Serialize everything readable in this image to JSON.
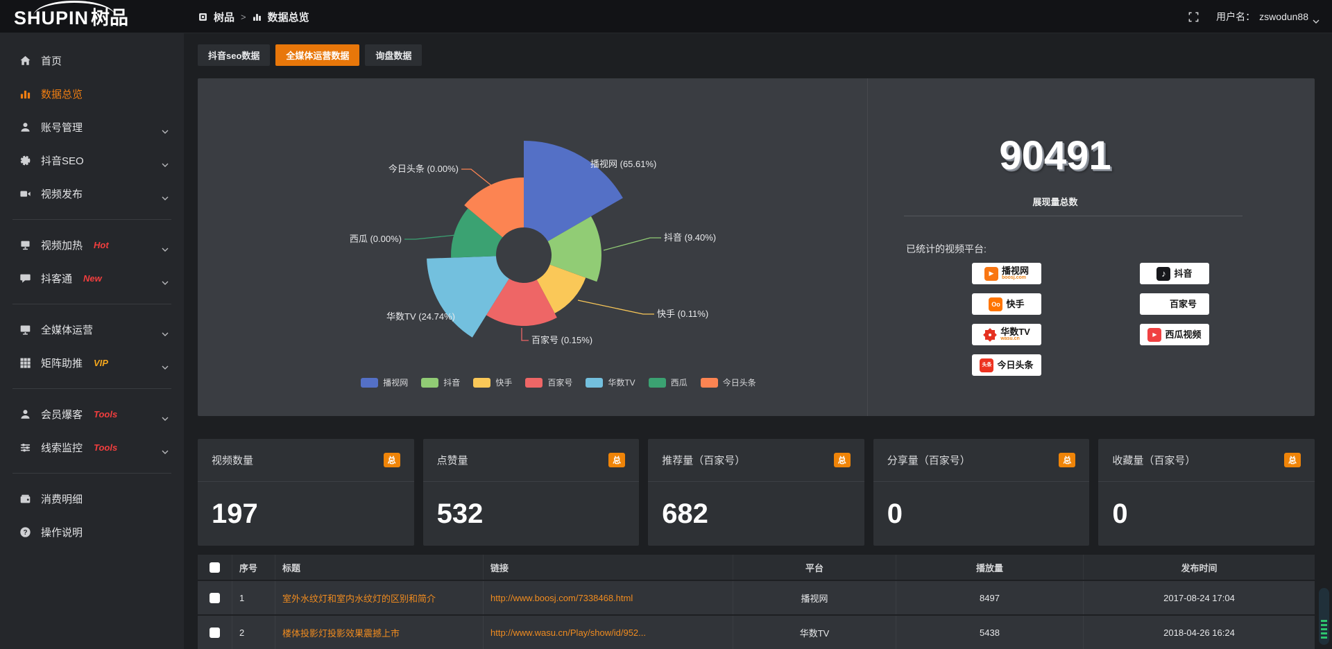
{
  "header": {
    "logo_en": "SHUPIN",
    "logo_cn": "树品",
    "breadcrumb": [
      {
        "label": "树品"
      },
      {
        "label": "数据总览"
      }
    ],
    "breadcrumb_separator": ">",
    "username_label": "用户名：",
    "username": "zswodun88"
  },
  "sidebar": {
    "items": [
      {
        "label": "首页",
        "icon": "home-icon"
      },
      {
        "label": "数据总览",
        "icon": "bar-chart-icon",
        "active": true
      },
      {
        "label": "账号管理",
        "icon": "user-icon",
        "chevron": true
      },
      {
        "label": "抖音SEO",
        "icon": "gear-icon",
        "chevron": true
      },
      {
        "label": "视频发布",
        "icon": "video-icon",
        "chevron": true,
        "divider_after": true
      },
      {
        "label": "视频加热",
        "icon": "screen-icon",
        "tag": "Hot",
        "tag_color": "#f23e3e",
        "chevron": true
      },
      {
        "label": "抖客通",
        "icon": "chat-icon",
        "tag": "New",
        "tag_color": "#f23e3e",
        "chevron": true,
        "divider_after": true
      },
      {
        "label": "全媒体运营",
        "icon": "monitor-icon",
        "chevron": true
      },
      {
        "label": "矩阵助推",
        "icon": "grid-icon",
        "tag": "VIP",
        "tag_color": "#f5a71d",
        "chevron": true,
        "divider_after": true
      },
      {
        "label": "会员爆客",
        "icon": "person-icon",
        "tag": "Tools",
        "tag_color": "#f23e3e",
        "chevron": true
      },
      {
        "label": "线索监控",
        "icon": "sliders-icon",
        "tag": "Tools",
        "tag_color": "#f23e3e",
        "chevron": true,
        "divider_after": true
      },
      {
        "label": "消费明细",
        "icon": "wallet-icon"
      },
      {
        "label": "操作说明",
        "icon": "question-icon"
      }
    ]
  },
  "tabs": [
    {
      "label": "抖音seo数据",
      "active": false
    },
    {
      "label": "全媒体运营数据",
      "active": true
    },
    {
      "label": "询盘数据",
      "active": false
    }
  ],
  "chart_data": {
    "type": "pie",
    "style": "nightingale-rose",
    "legend_position": "bottom",
    "series": [
      {
        "name": "播视网",
        "percent": 65.61,
        "color": "#5470c6"
      },
      {
        "name": "抖音",
        "percent": 9.4,
        "color": "#91cc75"
      },
      {
        "name": "快手",
        "percent": 0.11,
        "color": "#fac858"
      },
      {
        "name": "百家号",
        "percent": 0.15,
        "color": "#ee6666"
      },
      {
        "name": "华数TV",
        "percent": 24.74,
        "color": "#73c0de"
      },
      {
        "name": "西瓜",
        "percent": 0.0,
        "color": "#3ba272"
      },
      {
        "name": "今日头条",
        "percent": 0.0,
        "color": "#fc8452"
      }
    ]
  },
  "summary": {
    "total": "90491",
    "total_label": "展现量总数",
    "platforms_label": "已统计的视频平台:",
    "platforms_left": [
      {
        "name": "播视网",
        "sub": "boosj.com",
        "logo": "boosj"
      },
      {
        "name": "快手",
        "sub": "",
        "logo": "kuaishou"
      },
      {
        "name": "华数TV",
        "sub": "wasu.cn",
        "logo": "wasu"
      },
      {
        "name": "今日头条",
        "sub": "",
        "logo": "toutiao"
      }
    ],
    "platforms_right": [
      {
        "name": "抖音",
        "sub": "",
        "logo": "douyin"
      },
      {
        "name": "百家号",
        "sub": "",
        "logo": "baijiahao"
      },
      {
        "name": "西瓜视频",
        "sub": "",
        "logo": "xigua"
      }
    ]
  },
  "stat_cards": [
    {
      "label": "视频数量",
      "badge": "总",
      "value": "197"
    },
    {
      "label": "点赞量",
      "badge": "总",
      "value": "532"
    },
    {
      "label": "推荐量（百家号）",
      "badge": "总",
      "value": "682"
    },
    {
      "label": "分享量（百家号）",
      "badge": "总",
      "value": "0"
    },
    {
      "label": "收藏量（百家号）",
      "badge": "总",
      "value": "0"
    }
  ],
  "table": {
    "headers": [
      "",
      "序号",
      "标题",
      "链接",
      "平台",
      "播放量",
      "发布时间"
    ],
    "rows": [
      {
        "no": "1",
        "title": "室外水纹灯和室内水纹灯的区别和简介",
        "link": "http://www.boosj.com/7338468.html",
        "platform": "播视网",
        "plays": "8497",
        "time": "2017-08-24 17:04"
      },
      {
        "no": "2",
        "title": "楼体投影灯投影效果震撼上市",
        "link": "http://www.wasu.cn/Play/show/id/952...",
        "platform": "华数TV",
        "plays": "5438",
        "time": "2018-04-26 16:24"
      }
    ]
  }
}
